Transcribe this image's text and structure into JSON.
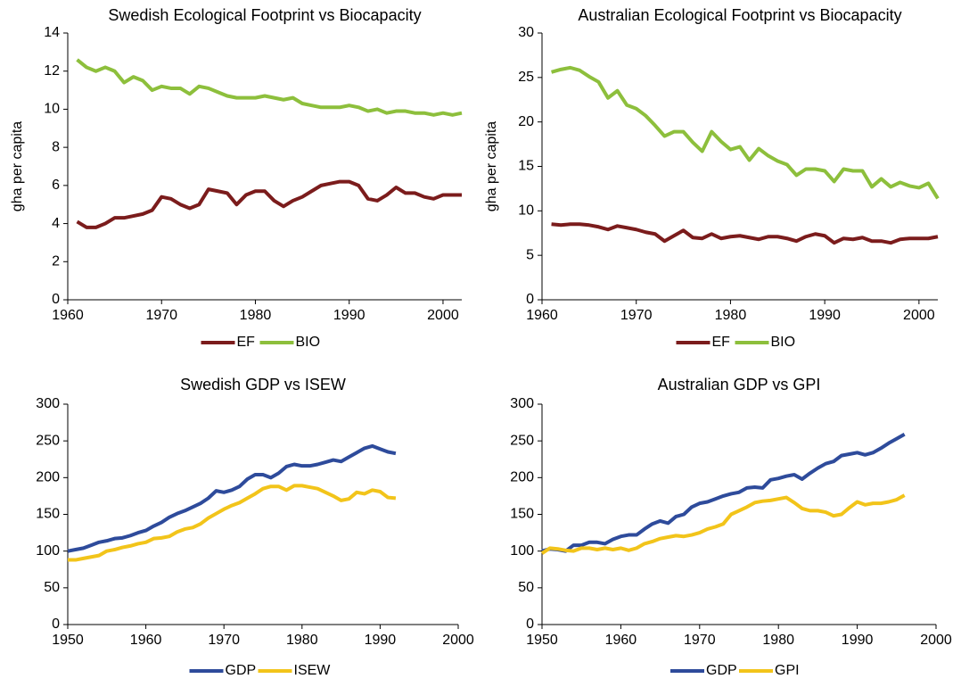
{
  "chart_data": [
    {
      "type": "line",
      "title": "Swedish  Ecological Footprint vs Biocapacity",
      "ylabel": "gha per capita",
      "x": [
        1961,
        1962,
        1963,
        1964,
        1965,
        1966,
        1967,
        1968,
        1969,
        1970,
        1971,
        1972,
        1973,
        1974,
        1975,
        1976,
        1977,
        1978,
        1979,
        1980,
        1981,
        1982,
        1983,
        1984,
        1985,
        1986,
        1987,
        1988,
        1989,
        1990,
        1991,
        1992,
        1993,
        1994,
        1995,
        1996,
        1997,
        1998,
        1999,
        2000,
        2001,
        2002
      ],
      "series": [
        {
          "name": "EF",
          "color": "#7b1c1c",
          "values": [
            4.1,
            3.8,
            3.8,
            4.0,
            4.3,
            4.3,
            4.4,
            4.5,
            4.7,
            5.4,
            5.3,
            5.0,
            4.8,
            5.0,
            5.8,
            5.7,
            5.6,
            5.0,
            5.5,
            5.7,
            5.7,
            5.2,
            4.9,
            5.2,
            5.4,
            5.7,
            6.0,
            6.1,
            6.2,
            6.2,
            6.0,
            5.3,
            5.2,
            5.5,
            5.9,
            5.6,
            5.6,
            5.4,
            5.3,
            5.5,
            5.5,
            5.5
          ]
        },
        {
          "name": "BIO",
          "color": "#8dbf3c",
          "values": [
            12.6,
            12.2,
            12.0,
            12.2,
            12.0,
            11.4,
            11.7,
            11.5,
            11.0,
            11.2,
            11.1,
            11.1,
            10.8,
            11.2,
            11.1,
            10.9,
            10.7,
            10.6,
            10.6,
            10.6,
            10.7,
            10.6,
            10.5,
            10.6,
            10.3,
            10.2,
            10.1,
            10.1,
            10.1,
            10.2,
            10.1,
            9.9,
            10.0,
            9.8,
            9.9,
            9.9,
            9.8,
            9.8,
            9.7,
            9.8,
            9.7,
            9.8
          ]
        }
      ],
      "xlim": [
        1960,
        2002
      ],
      "xticks": [
        1960,
        1970,
        1980,
        1990,
        2000
      ],
      "ylim": [
        0,
        14
      ],
      "yticks": [
        0,
        2,
        4,
        6,
        8,
        10,
        12,
        14
      ],
      "legend": "bottom"
    },
    {
      "type": "line",
      "title": "Australian Ecological Footprint vs Biocapacity",
      "ylabel": "gha per capita",
      "x": [
        1961,
        1962,
        1963,
        1964,
        1965,
        1966,
        1967,
        1968,
        1969,
        1970,
        1971,
        1972,
        1973,
        1974,
        1975,
        1976,
        1977,
        1978,
        1979,
        1980,
        1981,
        1982,
        1983,
        1984,
        1985,
        1986,
        1987,
        1988,
        1989,
        1990,
        1991,
        1992,
        1993,
        1994,
        1995,
        1996,
        1997,
        1998,
        1999,
        2000,
        2001,
        2002
      ],
      "series": [
        {
          "name": "EF",
          "color": "#7b1c1c",
          "values": [
            8.5,
            8.4,
            8.5,
            8.5,
            8.4,
            8.2,
            7.9,
            8.3,
            8.1,
            7.9,
            7.6,
            7.4,
            6.6,
            7.2,
            7.8,
            7.0,
            6.9,
            7.4,
            6.9,
            7.1,
            7.2,
            7.0,
            6.8,
            7.1,
            7.1,
            6.9,
            6.6,
            7.1,
            7.4,
            7.2,
            6.4,
            6.9,
            6.8,
            7.0,
            6.6,
            6.6,
            6.4,
            6.8,
            6.9,
            6.9,
            6.9,
            7.1
          ]
        },
        {
          "name": "BIO",
          "color": "#8dbf3c",
          "values": [
            25.6,
            25.9,
            26.1,
            25.8,
            25.1,
            24.5,
            22.7,
            23.5,
            21.9,
            21.5,
            20.7,
            19.6,
            18.4,
            18.9,
            18.9,
            17.7,
            16.7,
            18.9,
            17.8,
            16.9,
            17.2,
            15.7,
            17.0,
            16.2,
            15.6,
            15.2,
            14.0,
            14.7,
            14.7,
            14.5,
            13.3,
            14.7,
            14.5,
            14.5,
            12.7,
            13.6,
            12.7,
            13.2,
            12.8,
            12.6,
            13.1,
            11.4
          ]
        }
      ],
      "xlim": [
        1960,
        2002
      ],
      "xticks": [
        1960,
        1970,
        1980,
        1990,
        2000
      ],
      "ylim": [
        0,
        30
      ],
      "yticks": [
        0,
        5,
        10,
        15,
        20,
        25,
        30
      ],
      "legend": "bottom"
    },
    {
      "type": "line",
      "title": "Swedish GDP vs ISEW",
      "x": [
        1950,
        1951,
        1952,
        1953,
        1954,
        1955,
        1956,
        1957,
        1958,
        1959,
        1960,
        1961,
        1962,
        1963,
        1964,
        1965,
        1966,
        1967,
        1968,
        1969,
        1970,
        1971,
        1972,
        1973,
        1974,
        1975,
        1976,
        1977,
        1978,
        1979,
        1980,
        1981,
        1982,
        1983,
        1984,
        1985,
        1986,
        1987,
        1988,
        1989,
        1990,
        1991,
        1992
      ],
      "series": [
        {
          "name": "GDP",
          "color": "#2e4b9b",
          "values": [
            100,
            102,
            104,
            108,
            112,
            114,
            117,
            118,
            121,
            125,
            128,
            134,
            139,
            146,
            151,
            155,
            160,
            165,
            172,
            182,
            180,
            183,
            188,
            198,
            204,
            204,
            200,
            206,
            215,
            218,
            216,
            216,
            218,
            221,
            224,
            222,
            228,
            234,
            240,
            243,
            239,
            235,
            233
          ]
        },
        {
          "name": "ISEW",
          "color": "#f2c41a",
          "values": [
            88,
            88,
            90,
            92,
            94,
            100,
            102,
            105,
            107,
            110,
            112,
            117,
            118,
            120,
            126,
            130,
            132,
            137,
            145,
            151,
            157,
            162,
            166,
            172,
            178,
            185,
            188,
            188,
            183,
            189,
            189,
            187,
            185,
            180,
            175,
            169,
            171,
            180,
            178,
            183,
            181,
            173,
            172
          ]
        }
      ],
      "xlim": [
        1950,
        2000
      ],
      "xticks": [
        1950,
        1960,
        1970,
        1980,
        1990,
        2000
      ],
      "ylim": [
        0,
        300
      ],
      "yticks": [
        0,
        50,
        100,
        150,
        200,
        250,
        300
      ],
      "legend": "bottom"
    },
    {
      "type": "line",
      "title": "Australian GDP vs GPI",
      "x": [
        1950,
        1951,
        1952,
        1953,
        1954,
        1955,
        1956,
        1957,
        1958,
        1959,
        1960,
        1961,
        1962,
        1963,
        1964,
        1965,
        1966,
        1967,
        1968,
        1969,
        1970,
        1971,
        1972,
        1973,
        1974,
        1975,
        1976,
        1977,
        1978,
        1979,
        1980,
        1981,
        1982,
        1983,
        1984,
        1985,
        1986,
        1987,
        1988,
        1989,
        1990,
        1991,
        1992,
        1993,
        1994,
        1995,
        1996
      ],
      "series": [
        {
          "name": "GDP",
          "color": "#2e4b9b",
          "values": [
            100,
            103,
            102,
            100,
            108,
            108,
            112,
            112,
            110,
            116,
            120,
            122,
            122,
            130,
            137,
            141,
            138,
            147,
            150,
            160,
            165,
            167,
            171,
            175,
            178,
            180,
            186,
            187,
            186,
            197,
            199,
            202,
            204,
            198,
            206,
            213,
            219,
            222,
            230,
            232,
            234,
            231,
            234,
            240,
            247,
            253,
            259
          ]
        },
        {
          "name": "GPI",
          "color": "#f2c41a",
          "values": [
            97,
            104,
            103,
            101,
            100,
            104,
            104,
            102,
            104,
            102,
            104,
            101,
            104,
            110,
            113,
            117,
            119,
            121,
            120,
            122,
            125,
            130,
            133,
            137,
            150,
            155,
            160,
            166,
            168,
            169,
            171,
            173,
            166,
            158,
            155,
            155,
            153,
            148,
            150,
            159,
            167,
            163,
            165,
            165,
            167,
            170,
            176
          ]
        }
      ],
      "xlim": [
        1950,
        2000
      ],
      "xticks": [
        1950,
        1960,
        1970,
        1980,
        1990,
        2000
      ],
      "ylim": [
        0,
        300
      ],
      "yticks": [
        0,
        50,
        100,
        150,
        200,
        250,
        300
      ],
      "legend": "bottom"
    }
  ]
}
